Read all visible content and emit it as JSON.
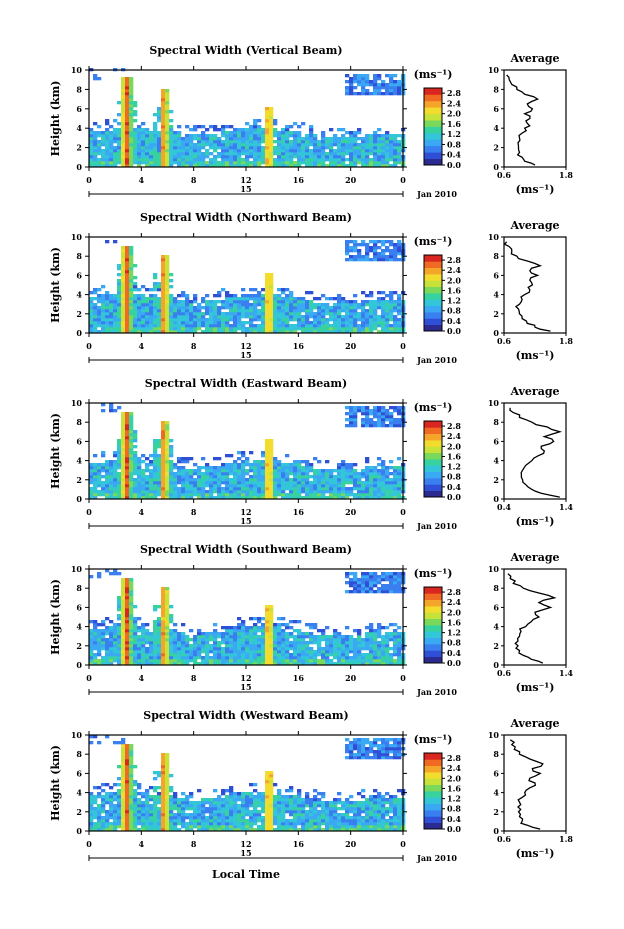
{
  "figure": {
    "date_label": "Jan 2010",
    "day_label": "15",
    "xlabel": "Local Time",
    "xticks": [
      "0",
      "4",
      "8",
      "12",
      "16",
      "20",
      "0"
    ],
    "ylabel": "Height (km)",
    "yticks": [
      "0",
      "2",
      "4",
      "6",
      "8",
      "10"
    ],
    "colorbar_unit": "(ms⁻¹)",
    "colorbar_ticks": [
      "0.0",
      "0.4",
      "0.8",
      "1.2",
      "1.6",
      "2.0",
      "2.4",
      "2.8"
    ],
    "avg_title": "Average",
    "avg_xlabel": "(ms⁻¹)"
  },
  "colors": {
    "colormap": [
      "#2b2b8f",
      "#2f4fd6",
      "#3a7ff0",
      "#3aa8f2",
      "#33c6d8",
      "#38d1a0",
      "#7ad85a",
      "#c8e23a",
      "#f2dd2e",
      "#f5a52a",
      "#f06a24",
      "#d92620"
    ],
    "avg_line": "#000000"
  },
  "chart_data": [
    {
      "type": "heatmap",
      "title": "Spectral Width (Vertical Beam)",
      "x_range_hours": [
        0,
        24
      ],
      "y_range_km": [
        0,
        10
      ],
      "color_range": [
        0.0,
        2.8
      ],
      "plumes_local_time": [
        2.7,
        5.6,
        13.6
      ],
      "average_profile": {
        "xticks": [
          "0.6",
          "1.8"
        ],
        "xlim": [
          0.6,
          1.8
        ],
        "height_km": [
          0.2,
          0.6,
          1.0,
          1.5,
          2.0,
          2.5,
          3.0,
          3.5,
          4.0,
          4.5,
          5.0,
          5.5,
          6.0,
          6.5,
          7.0,
          7.5,
          8.0,
          8.5,
          9.0,
          9.5
        ],
        "width": [
          1.2,
          1.0,
          0.95,
          0.9,
          0.88,
          0.87,
          0.9,
          0.95,
          1.0,
          1.05,
          1.1,
          1.0,
          1.15,
          1.05,
          1.25,
          1.0,
          0.85,
          0.75,
          0.7,
          0.65
        ]
      }
    },
    {
      "type": "heatmap",
      "title": "Spectral Width (Northward Beam)",
      "x_range_hours": [
        0,
        24
      ],
      "y_range_km": [
        0,
        10
      ],
      "color_range": [
        0.0,
        2.8
      ],
      "plumes_local_time": [
        2.7,
        5.6,
        13.6
      ],
      "average_profile": {
        "xticks": [
          "0.6",
          "1.8"
        ],
        "xlim": [
          0.6,
          1.8
        ],
        "height_km": [
          0.2,
          0.6,
          1.0,
          1.5,
          2.0,
          2.5,
          3.0,
          3.5,
          4.0,
          4.5,
          5.0,
          5.5,
          6.0,
          6.5,
          7.0,
          7.5,
          8.0,
          8.5,
          9.0,
          9.5
        ],
        "width": [
          1.5,
          1.2,
          1.05,
          0.95,
          0.9,
          0.88,
          0.9,
          0.95,
          1.0,
          1.1,
          1.15,
          1.1,
          1.25,
          1.1,
          1.3,
          1.05,
          0.85,
          0.75,
          0.7,
          0.65
        ]
      }
    },
    {
      "type": "heatmap",
      "title": "Spectral Width (Eastward Beam)",
      "x_range_hours": [
        0,
        24
      ],
      "y_range_km": [
        0,
        10
      ],
      "color_range": [
        0.0,
        2.8
      ],
      "plumes_local_time": [
        2.7,
        5.6,
        13.6
      ],
      "average_profile": {
        "xticks": [
          "0.4",
          "1.4"
        ],
        "xlim": [
          0.4,
          1.4
        ],
        "height_km": [
          0.2,
          0.6,
          1.0,
          1.5,
          2.0,
          2.5,
          3.0,
          3.5,
          4.0,
          4.5,
          5.0,
          5.5,
          6.0,
          6.5,
          7.0,
          7.5,
          8.0,
          8.5,
          9.0,
          9.5
        ],
        "width": [
          1.3,
          1.0,
          0.85,
          0.75,
          0.7,
          0.68,
          0.7,
          0.75,
          0.85,
          0.95,
          1.05,
          1.0,
          1.2,
          1.05,
          1.3,
          1.1,
          0.85,
          0.65,
          0.55,
          0.5
        ]
      }
    },
    {
      "type": "heatmap",
      "title": "Spectral Width (Southward Beam)",
      "x_range_hours": [
        0,
        24
      ],
      "y_range_km": [
        0,
        10
      ],
      "color_range": [
        0.0,
        2.8
      ],
      "plumes_local_time": [
        2.7,
        5.6,
        13.6
      ],
      "average_profile": {
        "xticks": [
          "0.6",
          "1.4"
        ],
        "xlim": [
          0.6,
          1.4
        ],
        "height_km": [
          0.2,
          0.6,
          1.0,
          1.5,
          2.0,
          2.5,
          3.0,
          3.5,
          4.0,
          4.5,
          5.0,
          5.5,
          6.0,
          6.5,
          7.0,
          7.5,
          8.0,
          8.5,
          9.0,
          9.5
        ],
        "width": [
          1.1,
          0.95,
          0.85,
          0.8,
          0.78,
          0.78,
          0.8,
          0.82,
          0.88,
          0.95,
          1.05,
          1.0,
          1.2,
          1.05,
          1.25,
          1.05,
          0.85,
          0.72,
          0.68,
          0.65
        ]
      }
    },
    {
      "type": "heatmap",
      "title": "Spectral Width (Westward Beam)",
      "x_range_hours": [
        0,
        24
      ],
      "y_range_km": [
        0,
        10
      ],
      "color_range": [
        0.0,
        2.8
      ],
      "plumes_local_time": [
        2.7,
        5.6,
        13.6
      ],
      "average_profile": {
        "xticks": [
          "0.6",
          "1.8"
        ],
        "xlim": [
          0.6,
          1.8
        ],
        "height_km": [
          0.2,
          0.6,
          1.0,
          1.5,
          2.0,
          2.5,
          3.0,
          3.5,
          4.0,
          4.5,
          5.0,
          5.5,
          6.0,
          6.5,
          7.0,
          7.5,
          8.0,
          8.5,
          9.0,
          9.5
        ],
        "width": [
          1.3,
          1.05,
          0.95,
          0.9,
          0.88,
          0.87,
          0.9,
          0.95,
          1.0,
          1.1,
          1.2,
          1.1,
          1.3,
          1.15,
          1.35,
          1.1,
          0.9,
          0.8,
          0.75,
          0.72
        ]
      }
    }
  ]
}
